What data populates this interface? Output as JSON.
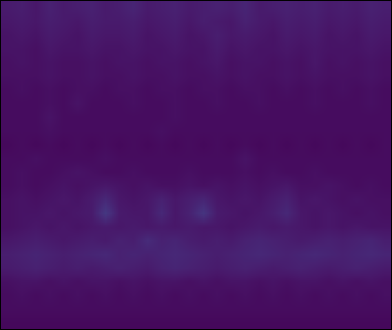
{
  "chart_data": {
    "type": "heatmap",
    "color": "viridis",
    "tick_labels": false,
    "zlim": [
      0,
      1
    ],
    "z": [
      [
        0.07,
        0.08,
        0.06,
        0.09,
        0.07,
        0.08,
        0.09,
        0.07,
        0.08,
        0.1,
        0.07,
        0.08,
        0.09,
        0.07,
        0.08,
        0.09,
        0.08,
        0.1,
        0.07,
        0.08,
        0.09,
        0.08,
        0.09,
        0.07,
        0.08,
        0.07,
        0.09,
        0.08
      ],
      [
        0.06,
        0.07,
        0.06,
        0.08,
        0.07,
        0.06,
        0.08,
        0.07,
        0.07,
        0.08,
        0.06,
        0.07,
        0.08,
        0.06,
        0.08,
        0.07,
        0.06,
        0.09,
        0.07,
        0.06,
        0.08,
        0.07,
        0.08,
        0.06,
        0.07,
        0.06,
        0.08,
        0.07
      ],
      [
        0.05,
        0.06,
        0.05,
        0.07,
        0.06,
        0.05,
        0.07,
        0.06,
        0.06,
        0.07,
        0.05,
        0.06,
        0.07,
        0.05,
        0.06,
        0.08,
        0.06,
        0.07,
        0.06,
        0.05,
        0.07,
        0.06,
        0.07,
        0.05,
        0.06,
        0.05,
        0.07,
        0.06
      ],
      [
        0.05,
        0.05,
        0.04,
        0.06,
        0.05,
        0.05,
        0.06,
        0.05,
        0.05,
        0.06,
        0.05,
        0.05,
        0.06,
        0.05,
        0.05,
        0.07,
        0.05,
        0.06,
        0.05,
        0.05,
        0.06,
        0.05,
        0.06,
        0.05,
        0.05,
        0.05,
        0.06,
        0.05
      ],
      [
        0.04,
        0.05,
        0.04,
        0.05,
        0.04,
        0.04,
        0.05,
        0.04,
        0.05,
        0.05,
        0.04,
        0.05,
        0.05,
        0.04,
        0.05,
        0.06,
        0.04,
        0.05,
        0.05,
        0.04,
        0.05,
        0.04,
        0.06,
        0.04,
        0.05,
        0.04,
        0.05,
        0.04
      ],
      [
        0.04,
        0.04,
        0.04,
        0.05,
        0.04,
        0.04,
        0.05,
        0.04,
        0.04,
        0.05,
        0.04,
        0.04,
        0.05,
        0.04,
        0.04,
        0.05,
        0.04,
        0.05,
        0.04,
        0.04,
        0.05,
        0.04,
        0.05,
        0.04,
        0.04,
        0.04,
        0.05,
        0.04
      ],
      [
        0.03,
        0.04,
        0.03,
        0.04,
        0.03,
        0.04,
        0.04,
        0.03,
        0.04,
        0.04,
        0.03,
        0.04,
        0.04,
        0.03,
        0.04,
        0.04,
        0.03,
        0.04,
        0.04,
        0.03,
        0.04,
        0.03,
        0.04,
        0.03,
        0.04,
        0.03,
        0.04,
        0.03
      ],
      [
        0.03,
        0.03,
        0.03,
        0.04,
        0.03,
        0.05,
        0.03,
        0.03,
        0.03,
        0.04,
        0.03,
        0.03,
        0.04,
        0.03,
        0.03,
        0.04,
        0.03,
        0.03,
        0.04,
        0.03,
        0.03,
        0.03,
        0.04,
        0.03,
        0.03,
        0.03,
        0.04,
        0.03
      ],
      [
        0.03,
        0.03,
        0.03,
        0.05,
        0.03,
        0.03,
        0.03,
        0.03,
        0.03,
        0.03,
        0.03,
        0.03,
        0.04,
        0.03,
        0.03,
        0.03,
        0.03,
        0.03,
        0.03,
        0.03,
        0.03,
        0.03,
        0.03,
        0.03,
        0.03,
        0.03,
        0.03,
        0.03
      ],
      [
        0.03,
        0.03,
        0.03,
        0.04,
        0.03,
        0.03,
        0.03,
        0.03,
        0.03,
        0.03,
        0.03,
        0.04,
        0.03,
        0.03,
        0.03,
        0.03,
        0.03,
        0.03,
        0.03,
        0.03,
        0.03,
        0.03,
        0.03,
        0.03,
        0.03,
        0.03,
        0.03,
        0.03
      ],
      [
        0.02,
        0.03,
        0.02,
        0.03,
        0.02,
        0.03,
        0.02,
        0.03,
        0.02,
        0.03,
        0.02,
        0.03,
        0.02,
        0.03,
        0.02,
        0.03,
        0.02,
        0.03,
        0.02,
        0.03,
        0.02,
        0.03,
        0.02,
        0.03,
        0.02,
        0.03,
        0.02,
        0.03
      ],
      [
        0.03,
        0.03,
        0.04,
        0.03,
        0.03,
        0.03,
        0.03,
        0.04,
        0.03,
        0.03,
        0.03,
        0.03,
        0.03,
        0.03,
        0.03,
        0.03,
        0.03,
        0.05,
        0.03,
        0.03,
        0.03,
        0.03,
        0.03,
        0.03,
        0.03,
        0.03,
        0.03,
        0.03
      ],
      [
        0.03,
        0.04,
        0.03,
        0.03,
        0.04,
        0.05,
        0.04,
        0.03,
        0.03,
        0.04,
        0.03,
        0.03,
        0.03,
        0.04,
        0.03,
        0.03,
        0.03,
        0.04,
        0.03,
        0.04,
        0.03,
        0.03,
        0.04,
        0.03,
        0.03,
        0.03,
        0.03,
        0.03
      ],
      [
        0.03,
        0.04,
        0.03,
        0.04,
        0.05,
        0.04,
        0.05,
        0.06,
        0.05,
        0.04,
        0.05,
        0.04,
        0.04,
        0.05,
        0.04,
        0.05,
        0.04,
        0.05,
        0.04,
        0.05,
        0.06,
        0.04,
        0.04,
        0.05,
        0.04,
        0.03,
        0.04,
        0.03
      ],
      [
        0.04,
        0.05,
        0.04,
        0.05,
        0.06,
        0.05,
        0.07,
        0.11,
        0.06,
        0.05,
        0.06,
        0.09,
        0.06,
        0.08,
        0.1,
        0.06,
        0.05,
        0.06,
        0.05,
        0.07,
        0.09,
        0.05,
        0.06,
        0.05,
        0.04,
        0.05,
        0.04,
        0.04
      ],
      [
        0.04,
        0.05,
        0.05,
        0.06,
        0.05,
        0.06,
        0.07,
        0.16,
        0.07,
        0.06,
        0.06,
        0.11,
        0.06,
        0.09,
        0.15,
        0.07,
        0.06,
        0.05,
        0.06,
        0.08,
        0.11,
        0.06,
        0.05,
        0.06,
        0.05,
        0.04,
        0.05,
        0.04
      ],
      [
        0.04,
        0.05,
        0.06,
        0.05,
        0.06,
        0.05,
        0.06,
        0.07,
        0.06,
        0.07,
        0.06,
        0.07,
        0.06,
        0.07,
        0.06,
        0.06,
        0.05,
        0.06,
        0.07,
        0.06,
        0.07,
        0.06,
        0.05,
        0.06,
        0.05,
        0.06,
        0.05,
        0.05
      ],
      [
        0.06,
        0.07,
        0.08,
        0.07,
        0.06,
        0.07,
        0.08,
        0.07,
        0.09,
        0.08,
        0.12,
        0.09,
        0.1,
        0.08,
        0.07,
        0.08,
        0.07,
        0.09,
        0.1,
        0.09,
        0.08,
        0.07,
        0.08,
        0.09,
        0.08,
        0.09,
        0.1,
        0.08
      ],
      [
        0.08,
        0.09,
        0.1,
        0.09,
        0.08,
        0.09,
        0.1,
        0.11,
        0.09,
        0.1,
        0.09,
        0.1,
        0.11,
        0.1,
        0.09,
        0.08,
        0.09,
        0.1,
        0.11,
        0.1,
        0.09,
        0.1,
        0.11,
        0.1,
        0.09,
        0.1,
        0.11,
        0.1
      ],
      [
        0.07,
        0.08,
        0.09,
        0.08,
        0.07,
        0.08,
        0.07,
        0.08,
        0.09,
        0.08,
        0.07,
        0.09,
        0.1,
        0.09,
        0.08,
        0.07,
        0.08,
        0.09,
        0.08,
        0.07,
        0.08,
        0.09,
        0.08,
        0.07,
        0.08,
        0.09,
        0.08,
        0.07
      ],
      [
        0.04,
        0.05,
        0.05,
        0.04,
        0.05,
        0.04,
        0.05,
        0.05,
        0.04,
        0.05,
        0.04,
        0.05,
        0.05,
        0.04,
        0.05,
        0.04,
        0.05,
        0.05,
        0.04,
        0.05,
        0.04,
        0.05,
        0.05,
        0.04,
        0.05,
        0.04,
        0.05,
        0.04
      ],
      [
        0.03,
        0.04,
        0.03,
        0.04,
        0.03,
        0.04,
        0.03,
        0.04,
        0.03,
        0.04,
        0.03,
        0.04,
        0.03,
        0.04,
        0.03,
        0.04,
        0.03,
        0.04,
        0.03,
        0.04,
        0.03,
        0.04,
        0.03,
        0.04,
        0.03,
        0.04,
        0.03,
        0.04
      ],
      [
        0.03,
        0.03,
        0.03,
        0.03,
        0.03,
        0.03,
        0.03,
        0.03,
        0.03,
        0.03,
        0.03,
        0.03,
        0.03,
        0.03,
        0.03,
        0.03,
        0.03,
        0.03,
        0.03,
        0.03,
        0.03,
        0.03,
        0.03,
        0.03,
        0.03,
        0.03,
        0.03,
        0.03
      ],
      [
        0.02,
        0.02,
        0.02,
        0.02,
        0.02,
        0.02,
        0.02,
        0.02,
        0.02,
        0.02,
        0.02,
        0.02,
        0.02,
        0.02,
        0.02,
        0.02,
        0.02,
        0.02,
        0.02,
        0.02,
        0.02,
        0.02,
        0.02,
        0.02,
        0.02,
        0.02,
        0.02,
        0.02
      ]
    ]
  }
}
